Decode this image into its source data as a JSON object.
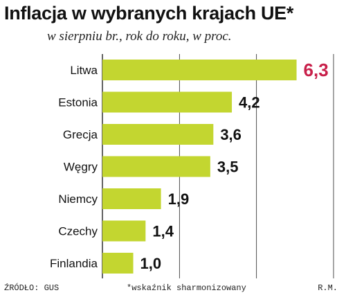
{
  "title": "Inflacja w wybranych krajach UE*",
  "subtitle": "w sierpniu br., rok do roku, w proc.",
  "footer": {
    "source": "ŹRÓDŁO: GUS",
    "note": "*wskaźnik sharmonizowany",
    "author": "R.M."
  },
  "colors": {
    "bar": "#c3d630",
    "label": "#111111",
    "highlight_label": "#c8204a",
    "gridline": "#222222"
  },
  "chart_data": {
    "type": "bar",
    "orientation": "horizontal",
    "title": "Inflacja w wybranych krajach UE*",
    "subtitle": "w sierpniu br., rok do roku, w proc.",
    "categories": [
      "Litwa",
      "Estonia",
      "Grecja",
      "Węgry",
      "Niemcy",
      "Czechy",
      "Finlandia"
    ],
    "values": [
      6.3,
      4.2,
      3.6,
      3.5,
      1.9,
      1.4,
      1.0
    ],
    "value_labels": [
      "6,3",
      "4,2",
      "3,6",
      "3,5",
      "1,9",
      "1,4",
      "1,0"
    ],
    "highlight_index": 0,
    "xlim": [
      0,
      7.5
    ],
    "vertical_gridlines": [
      0,
      2.5,
      5,
      7.5
    ],
    "xlabel": "",
    "ylabel": ""
  }
}
